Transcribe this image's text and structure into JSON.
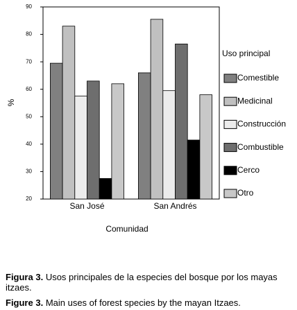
{
  "chart_data": {
    "type": "bar",
    "categories": [
      "San José",
      "San Andrés"
    ],
    "series": [
      {
        "name": "Comestible",
        "color": "#808080",
        "values": [
          69.5,
          66
        ]
      },
      {
        "name": "Medicinal",
        "color": "#c0c0c0",
        "values": [
          83,
          85.5
        ]
      },
      {
        "name": "Construcción",
        "color": "#ececec",
        "values": [
          57.5,
          59.5
        ]
      },
      {
        "name": "Combustible",
        "color": "#6e6e6e",
        "values": [
          63,
          76.5
        ]
      },
      {
        "name": "Cerco",
        "color": "#000000",
        "values": [
          27.5,
          41.5
        ]
      },
      {
        "name": "Otro",
        "color": "#c8c8c8",
        "values": [
          62,
          58
        ]
      }
    ],
    "ylim": [
      20,
      90
    ],
    "yticks": [
      20,
      30,
      40,
      50,
      60,
      70,
      80,
      90
    ],
    "y_label": "%",
    "x_label": "Comunidad",
    "legend_title": "Uso principal",
    "legend_position": "right"
  },
  "caption_es": {
    "label": "Figura 3.",
    "text": "Usos principales de la especies del bosque por los mayas itzaes."
  },
  "caption_en": {
    "label": "Figure 3.",
    "text": "Main uses of forest species by the mayan Itzaes."
  }
}
